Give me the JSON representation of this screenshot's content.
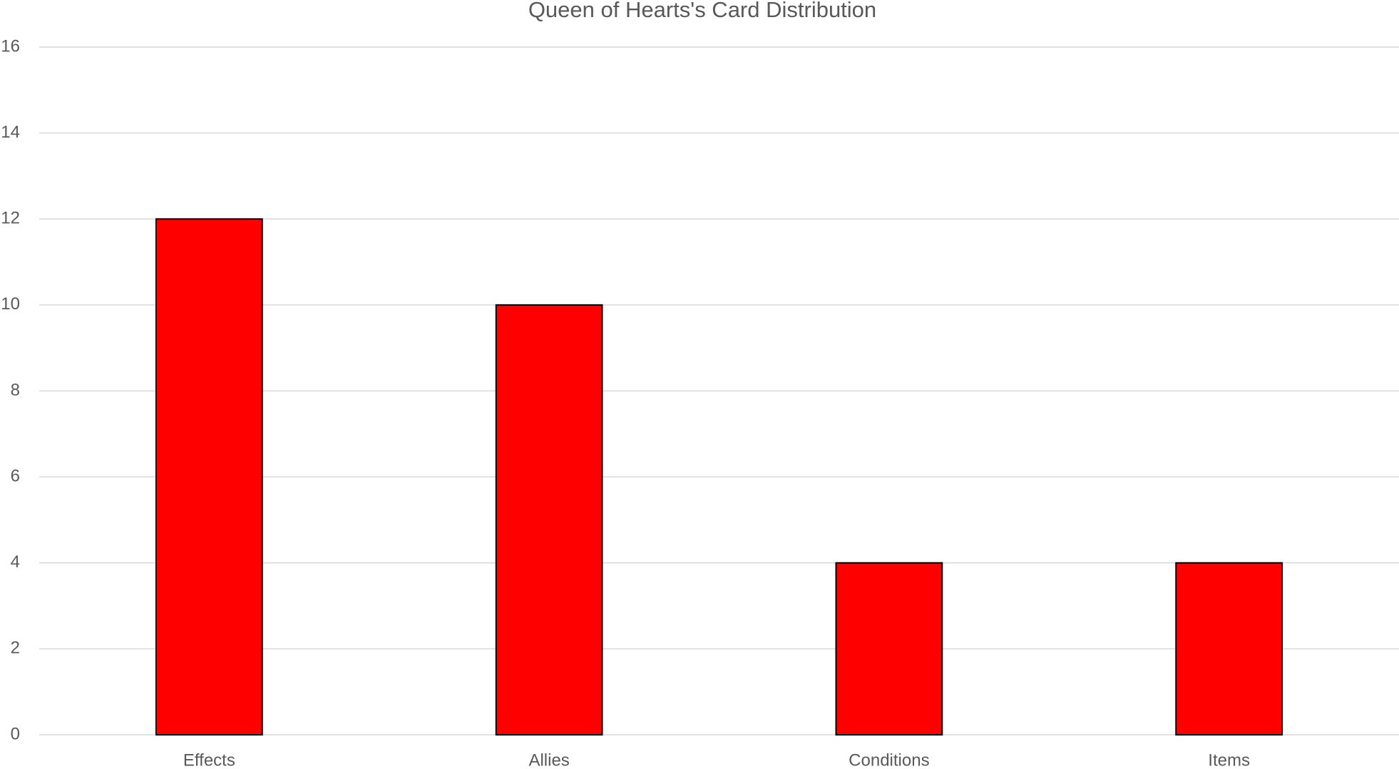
{
  "chart_data": {
    "type": "bar",
    "title": "Queen of Hearts's Card Distribution",
    "categories": [
      "Effects",
      "Allies",
      "Conditions",
      "Items"
    ],
    "values": [
      12,
      10,
      4,
      4
    ],
    "color": "#ff0000",
    "ylim": [
      0,
      16
    ],
    "yticks": [
      0,
      2,
      4,
      6,
      8,
      10,
      12,
      14,
      16
    ],
    "grid": true
  }
}
